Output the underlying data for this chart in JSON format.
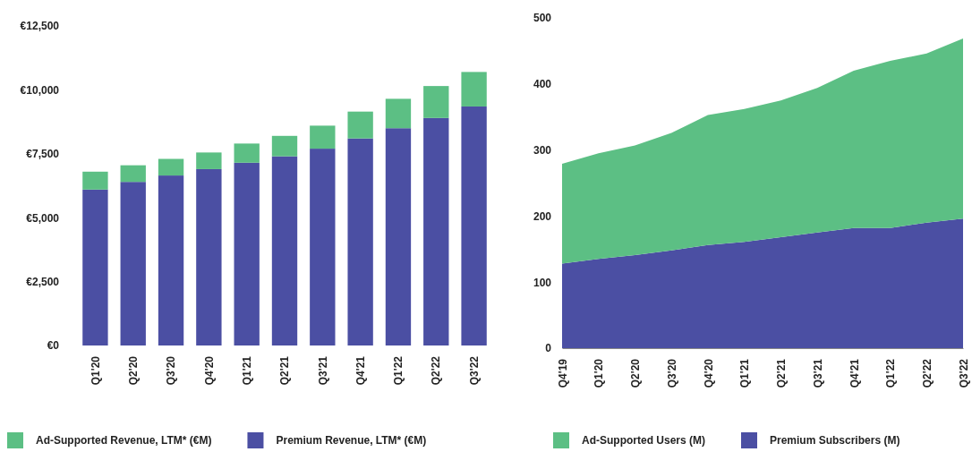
{
  "chart_data": [
    {
      "type": "bar",
      "stacked": true,
      "categories": [
        "Q1'20",
        "Q2'20",
        "Q3'20",
        "Q4'20",
        "Q1'21",
        "Q2'21",
        "Q3'21",
        "Q4'21",
        "Q1'22",
        "Q2'22",
        "Q3'22"
      ],
      "series": [
        {
          "name": "Premium Revenue, LTM* (€M)",
          "color": "#4b4fa3",
          "values": [
            6100,
            6400,
            6650,
            6900,
            7150,
            7400,
            7700,
            8100,
            8500,
            8900,
            9350
          ]
        },
        {
          "name": "Ad-Supported Revenue, LTM* (€M)",
          "color": "#5cbf84",
          "values": [
            700,
            650,
            650,
            650,
            750,
            800,
            900,
            1050,
            1150,
            1250,
            1350
          ]
        }
      ],
      "ylim": [
        0,
        12500
      ],
      "yticks": [
        {
          "value": 0,
          "label": "€0"
        },
        {
          "value": 2500,
          "label": "€2,500"
        },
        {
          "value": 5000,
          "label": "€5,000"
        },
        {
          "value": 7500,
          "label": "€7,500"
        },
        {
          "value": 10000,
          "label": "€10,000"
        },
        {
          "value": 12500,
          "label": "€12,500"
        }
      ],
      "grid": false,
      "legend": "bottom"
    },
    {
      "type": "area",
      "stacked": true,
      "categories": [
        "Q4'19",
        "Q1'20",
        "Q2'20",
        "Q3'20",
        "Q4'20",
        "Q1'21",
        "Q2'21",
        "Q3'21",
        "Q4'21",
        "Q1'22",
        "Q2'22",
        "Q3'22"
      ],
      "series": [
        {
          "name": "Premium Subscribers (M)",
          "color": "#4b4fa3",
          "values": [
            128,
            135,
            141,
            148,
            156,
            161,
            168,
            175,
            182,
            182,
            190,
            196
          ]
        },
        {
          "name": "Ad-Supported Users (M)",
          "color": "#5cbf84",
          "values": [
            151,
            160,
            166,
            178,
            197,
            201,
            207,
            219,
            238,
            253,
            256,
            273
          ]
        }
      ],
      "ylim": [
        0,
        500
      ],
      "yticks": [
        0,
        100,
        200,
        300,
        400,
        500
      ],
      "grid": false,
      "legend": "bottom"
    }
  ]
}
